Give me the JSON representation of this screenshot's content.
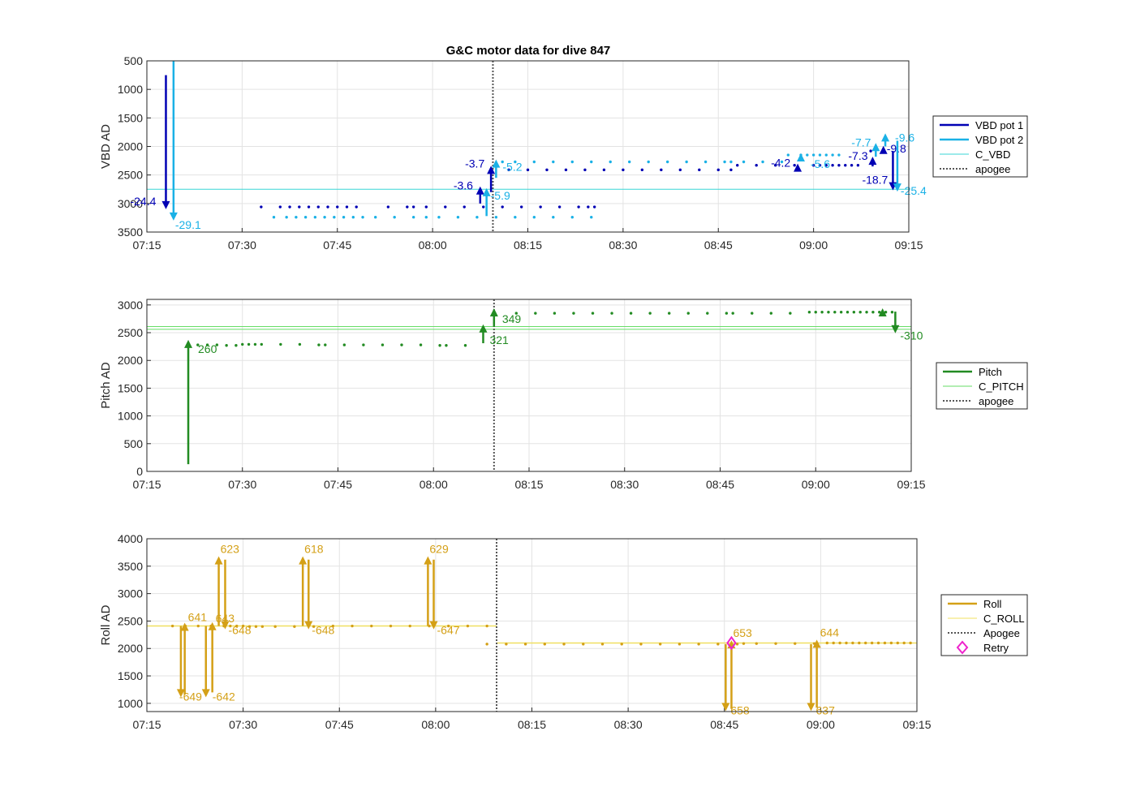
{
  "figure": {
    "title": "G&C motor data for dive 847"
  },
  "chart_data": [
    {
      "type": "line",
      "ylabel": "VBD AD",
      "ylim": [
        500,
        3500
      ],
      "y_reversed": true,
      "yticks": [
        500,
        1000,
        1500,
        2000,
        2500,
        3000,
        3500
      ],
      "xlim_min": [
        435,
        555
      ],
      "xticks": [
        "07:15",
        "07:30",
        "07:45",
        "08:00",
        "08:15",
        "08:30",
        "08:45",
        "09:00",
        "09:15"
      ],
      "grid": true,
      "legend": {
        "placement": "outside-right",
        "entries": [
          {
            "name": "VBD pot 1",
            "color": "#0000b4",
            "style": "thick"
          },
          {
            "name": "VBD pot 2",
            "color": "#1ab1e6",
            "style": "thick"
          },
          {
            "name": "C_VBD",
            "color": "#38d6d6",
            "style": "thin"
          },
          {
            "name": "apogee",
            "color": "#555555",
            "style": "dotted"
          }
        ]
      },
      "hlines": [
        {
          "y": 2750,
          "color": "#38d6d6"
        }
      ],
      "vlines": [
        {
          "x_min": 489.5,
          "color": "#555555"
        }
      ],
      "series": [
        {
          "color": "#0000b4",
          "type": "dots",
          "x_min": [
            453,
            456,
            457.5,
            459,
            460.5,
            462,
            463.5,
            465,
            466.5,
            468,
            473,
            476,
            477,
            479,
            482,
            485,
            488,
            491,
            494,
            497,
            500,
            503,
            504.5,
            505.5
          ],
          "y": [
            3060,
            3060,
            3060,
            3060,
            3060,
            3060,
            3060,
            3060,
            3060,
            3060,
            3060,
            3060,
            3060,
            3060,
            3060,
            3060,
            3060,
            3060,
            3060,
            3060,
            3060,
            3060,
            3060,
            3060
          ]
        },
        {
          "color": "#1ab1e6",
          "type": "dots",
          "x_min": [
            455,
            457,
            458.5,
            460,
            461.5,
            463,
            464.5,
            466,
            467.5,
            469,
            471,
            474,
            477,
            479,
            481,
            484,
            487,
            490,
            493,
            496,
            499,
            502,
            505
          ],
          "y": [
            3240,
            3240,
            3240,
            3240,
            3240,
            3240,
            3240,
            3240,
            3240,
            3240,
            3240,
            3240,
            3240,
            3240,
            3240,
            3240,
            3240,
            3240,
            3240,
            3240,
            3240,
            3240,
            3240
          ]
        },
        {
          "color": "#0000b4",
          "type": "dots",
          "x_min": [
            492,
            495,
            498,
            501,
            504,
            507,
            510,
            513,
            516,
            519,
            522,
            525,
            527,
            528,
            531,
            534,
            537,
            540,
            541,
            542,
            543,
            544,
            545,
            546,
            547,
            549
          ],
          "y": [
            2410,
            2410,
            2410,
            2410,
            2410,
            2410,
            2410,
            2410,
            2410,
            2410,
            2410,
            2410,
            2410,
            2330,
            2330,
            2330,
            2330,
            2330,
            2330,
            2330,
            2330,
            2330,
            2330,
            2330,
            2330,
            2080
          ]
        },
        {
          "color": "#1ab1e6",
          "type": "dots",
          "x_min": [
            491,
            493,
            496,
            499,
            502,
            505,
            508,
            511,
            514,
            517,
            520,
            523,
            526,
            527,
            529,
            532,
            535,
            536,
            538,
            539,
            540,
            541,
            542,
            543,
            544
          ],
          "y": [
            2270,
            2270,
            2270,
            2270,
            2270,
            2270,
            2270,
            2270,
            2270,
            2270,
            2270,
            2270,
            2270,
            2270,
            2270,
            2270,
            2270,
            2150,
            2150,
            2150,
            2150,
            2150,
            2150,
            2150,
            2150
          ]
        }
      ],
      "moves": [
        {
          "x_min": 438,
          "from": 750,
          "to": 3100,
          "color": "#0000b4",
          "label": "-24.4",
          "lx": -44,
          "ly": 5
        },
        {
          "x_min": 439.2,
          "from": 500,
          "to": 3300,
          "color": "#1ab1e6",
          "label": "-29.1",
          "lx": 2,
          "ly": 20
        },
        {
          "x_min": 487.5,
          "from": 3000,
          "to": 2700,
          "color": "#0000b4",
          "label": "-3.6",
          "lx": -33,
          "ly": 8
        },
        {
          "x_min": 488.5,
          "from": 3220,
          "to": 2730,
          "color": "#1ab1e6",
          "label": "-5.9",
          "lx": 5,
          "ly": 18
        },
        {
          "x_min": 489.2,
          "from": 2800,
          "to": 2340,
          "color": "#0000b4",
          "label": "-3.7",
          "lx": -32,
          "ly": 6
        },
        {
          "x_min": 490,
          "from": 2550,
          "to": 2230,
          "color": "#1ab1e6",
          "label": "-5.2",
          "lx": 8,
          "ly": 18
        },
        {
          "x_min": 537.5,
          "from": 2380,
          "to": 2300,
          "color": "#0000b4",
          "label": "-4.2",
          "lx": -33,
          "ly": 8
        },
        {
          "x_min": 538,
          "from": 2250,
          "to": 2120,
          "color": "#1ab1e6",
          "label": "-5.6",
          "lx": 12,
          "ly": 22
        },
        {
          "x_min": 549.3,
          "from": 2350,
          "to": 2180,
          "color": "#0000b4",
          "label": "-7.3",
          "lx": -30,
          "ly": 8
        },
        {
          "x_min": 549.8,
          "from": 2180,
          "to": 1940,
          "color": "#1ab1e6",
          "label": "-7.7",
          "lx": -30,
          "ly": 8
        },
        {
          "x_min": 551,
          "from": 2100,
          "to": 1990,
          "color": "#0000b4",
          "label": "-9.8",
          "lx": 4,
          "ly": 12
        },
        {
          "x_min": 551.3,
          "from": 2000,
          "to": 1770,
          "color": "#1ab1e6",
          "label": "-9.6",
          "lx": 12,
          "ly": 14
        },
        {
          "x_min": 552.5,
          "from": 2080,
          "to": 2770,
          "color": "#0000b4",
          "label": "-18.7",
          "lx": -38,
          "ly": 2
        },
        {
          "x_min": 553.2,
          "from": 1900,
          "to": 2790,
          "color": "#1ab1e6",
          "label": "-25.4",
          "lx": 4,
          "ly": 14
        }
      ]
    },
    {
      "type": "line",
      "ylabel": "Pitch AD",
      "ylim": [
        0,
        3100
      ],
      "yticks": [
        0,
        500,
        1000,
        1500,
        2000,
        2500,
        3000
      ],
      "xlim_min": [
        435,
        555
      ],
      "xticks": [
        "07:15",
        "07:30",
        "07:45",
        "08:00",
        "08:15",
        "08:30",
        "08:45",
        "09:00",
        "09:15"
      ],
      "grid": true,
      "legend": {
        "placement": "outside-right",
        "entries": [
          {
            "name": "Pitch",
            "color": "#228b22",
            "style": "thick"
          },
          {
            "name": "C_PITCH",
            "color": "#66dd66",
            "style": "thin"
          },
          {
            "name": "apogee",
            "color": "#555555",
            "style": "dotted"
          }
        ]
      },
      "hlines": [
        {
          "y": 2560,
          "color": "#66dd66"
        },
        {
          "y": 2610,
          "color": "#66dd66"
        }
      ],
      "vlines": [
        {
          "x_min": 489.5,
          "color": "#555555"
        }
      ],
      "series": [
        {
          "color": "#228b22",
          "type": "dots",
          "x_min": [
            443,
            444.5,
            446,
            447.5,
            449,
            450,
            451,
            452,
            453,
            456,
            459,
            462,
            463,
            466,
            469,
            472,
            475,
            478,
            481,
            482,
            485
          ],
          "y": [
            2280,
            2280,
            2280,
            2270,
            2270,
            2290,
            2290,
            2290,
            2290,
            2290,
            2290,
            2280,
            2280,
            2280,
            2280,
            2280,
            2280,
            2280,
            2270,
            2270,
            2270
          ]
        },
        {
          "color": "#228b22",
          "type": "dots",
          "x_min": [
            493,
            496,
            499,
            502,
            505,
            508,
            511,
            514,
            517,
            520,
            523,
            526,
            527,
            530,
            533,
            536,
            539,
            540,
            541,
            542,
            543,
            544,
            545,
            546,
            547,
            548,
            549,
            550,
            551,
            552
          ],
          "y": [
            2850,
            2850,
            2850,
            2850,
            2850,
            2850,
            2850,
            2850,
            2850,
            2850,
            2850,
            2850,
            2850,
            2850,
            2850,
            2850,
            2870,
            2870,
            2870,
            2870,
            2870,
            2870,
            2870,
            2870,
            2870,
            2870,
            2870,
            2870,
            2870,
            2870
          ]
        }
      ],
      "moves": [
        {
          "x_min": 441.5,
          "from": 130,
          "to": 2370,
          "color": "#228b22",
          "label": "260",
          "lx": 12,
          "ly": 20
        },
        {
          "x_min": 487.8,
          "from": 2310,
          "to": 2650,
          "color": "#228b22",
          "label": "321",
          "lx": 8,
          "ly": 28
        },
        {
          "x_min": 489.5,
          "from": 2610,
          "to": 2940,
          "color": "#228b22",
          "label": "349",
          "lx": 10,
          "ly": 22
        },
        {
          "x_min": 550.5,
          "from": 2830,
          "to": 2940,
          "color": "#228b22",
          "label": "",
          "lx": 0,
          "ly": 0
        },
        {
          "x_min": 552.5,
          "from": 2880,
          "to": 2490,
          "color": "#228b22",
          "label": "-310",
          "lx": 6,
          "ly": 18
        }
      ]
    },
    {
      "type": "line",
      "ylabel": "Roll AD",
      "ylim": [
        850,
        4000
      ],
      "yticks": [
        1000,
        1500,
        2000,
        2500,
        3000,
        3500,
        4000
      ],
      "xlim_min": [
        435,
        555
      ],
      "xticks": [
        "07:15",
        "07:30",
        "07:45",
        "08:00",
        "08:15",
        "08:30",
        "08:45",
        "09:00",
        "09:15"
      ],
      "grid": true,
      "legend": {
        "placement": "outside-right",
        "entries": [
          {
            "name": "Roll",
            "color": "#d4a017",
            "style": "thick"
          },
          {
            "name": "C_ROLL",
            "color": "#f0e060",
            "style": "thin"
          },
          {
            "name": "Apogee",
            "color": "#555555",
            "style": "dotted"
          },
          {
            "name": "Retry",
            "color": "#ee22cc",
            "style": "diamond"
          }
        ]
      },
      "hlines_seg": [
        {
          "y": 2410,
          "x1": 435,
          "x2": 489.5,
          "color": "#f0e060"
        },
        {
          "y": 2100,
          "x1": 489.5,
          "x2": 555,
          "color": "#f0e060"
        }
      ],
      "vlines": [
        {
          "x_min": 489.5,
          "color": "#555555"
        }
      ],
      "series": [
        {
          "color": "#d4a017",
          "type": "dots",
          "x_min": [
            439,
            441,
            443,
            445,
            447,
            448,
            449,
            450,
            451,
            452,
            453,
            455,
            458,
            461,
            464,
            467,
            470,
            473,
            476,
            479,
            482,
            485,
            488
          ],
          "y": [
            2410,
            2410,
            2410,
            2410,
            2410,
            2410,
            2410,
            2410,
            2400,
            2400,
            2400,
            2400,
            2400,
            2400,
            2410,
            2410,
            2410,
            2410,
            2410,
            2410,
            2410,
            2410,
            2410
          ]
        },
        {
          "color": "#d4a017",
          "type": "dots",
          "x_min": [
            488,
            491,
            494,
            497,
            500,
            503,
            506,
            509,
            512,
            515,
            518,
            521,
            524,
            527,
            528,
            530,
            533,
            536,
            539,
            541,
            542,
            543,
            544,
            545,
            546,
            547,
            548,
            549,
            550,
            551,
            552,
            553,
            554
          ],
          "y": [
            2080,
            2080,
            2080,
            2080,
            2080,
            2080,
            2080,
            2080,
            2080,
            2080,
            2080,
            2080,
            2080,
            2080,
            2090,
            2090,
            2090,
            2090,
            2090,
            2100,
            2100,
            2100,
            2100,
            2100,
            2100,
            2100,
            2100,
            2100,
            2100,
            2100,
            2100,
            2100,
            2100
          ]
        }
      ],
      "moves": [
        {
          "x_min": 440.3,
          "from": 2410,
          "to": 1110,
          "color": "#d4a017",
          "label": "-649",
          "lx": -2,
          "ly": 14
        },
        {
          "x_min": 440.9,
          "from": 1160,
          "to": 2470,
          "color": "#d4a017",
          "label": "641",
          "lx": 4,
          "ly": 2
        },
        {
          "x_min": 444.2,
          "from": 2410,
          "to": 1110,
          "color": "#d4a017",
          "label": "-642",
          "lx": 8,
          "ly": 14
        },
        {
          "x_min": 445.2,
          "from": 1200,
          "to": 2480,
          "color": "#d4a017",
          "label": "643",
          "lx": 4,
          "ly": 4
        },
        {
          "x_min": 446.2,
          "from": 2410,
          "to": 3680,
          "color": "#d4a017",
          "label": "623",
          "lx": 2,
          "ly": 0
        },
        {
          "x_min": 447.2,
          "from": 3620,
          "to": 2350,
          "color": "#d4a017",
          "label": "-648",
          "lx": 4,
          "ly": 16
        },
        {
          "x_min": 459.3,
          "from": 2410,
          "to": 3680,
          "color": "#d4a017",
          "label": "618",
          "lx": 2,
          "ly": 0
        },
        {
          "x_min": 460.2,
          "from": 3620,
          "to": 2350,
          "color": "#d4a017",
          "label": "-648",
          "lx": 4,
          "ly": 16
        },
        {
          "x_min": 478.8,
          "from": 2410,
          "to": 3680,
          "color": "#d4a017",
          "label": "629",
          "lx": 2,
          "ly": 0
        },
        {
          "x_min": 479.7,
          "from": 3620,
          "to": 2350,
          "color": "#d4a017",
          "label": "-647",
          "lx": 4,
          "ly": 16
        },
        {
          "x_min": 525.2,
          "from": 2080,
          "to": 860,
          "color": "#d4a017",
          "label": "658",
          "lx": 6,
          "ly": 14
        },
        {
          "x_min": 526.1,
          "from": 900,
          "to": 2150,
          "color": "#d4a017",
          "label": "653",
          "lx": 2,
          "ly": 0
        },
        {
          "x_min": 538.5,
          "from": 2080,
          "to": 860,
          "color": "#d4a017",
          "label": "637",
          "lx": 6,
          "ly": 14
        },
        {
          "x_min": 539.4,
          "from": 920,
          "to": 2160,
          "color": "#d4a017",
          "label": "644",
          "lx": 4,
          "ly": 0
        }
      ],
      "markers": [
        {
          "x_min": 526.1,
          "y": 2100,
          "color": "#ee22cc",
          "shape": "diamond",
          "name": "Retry"
        }
      ]
    }
  ]
}
